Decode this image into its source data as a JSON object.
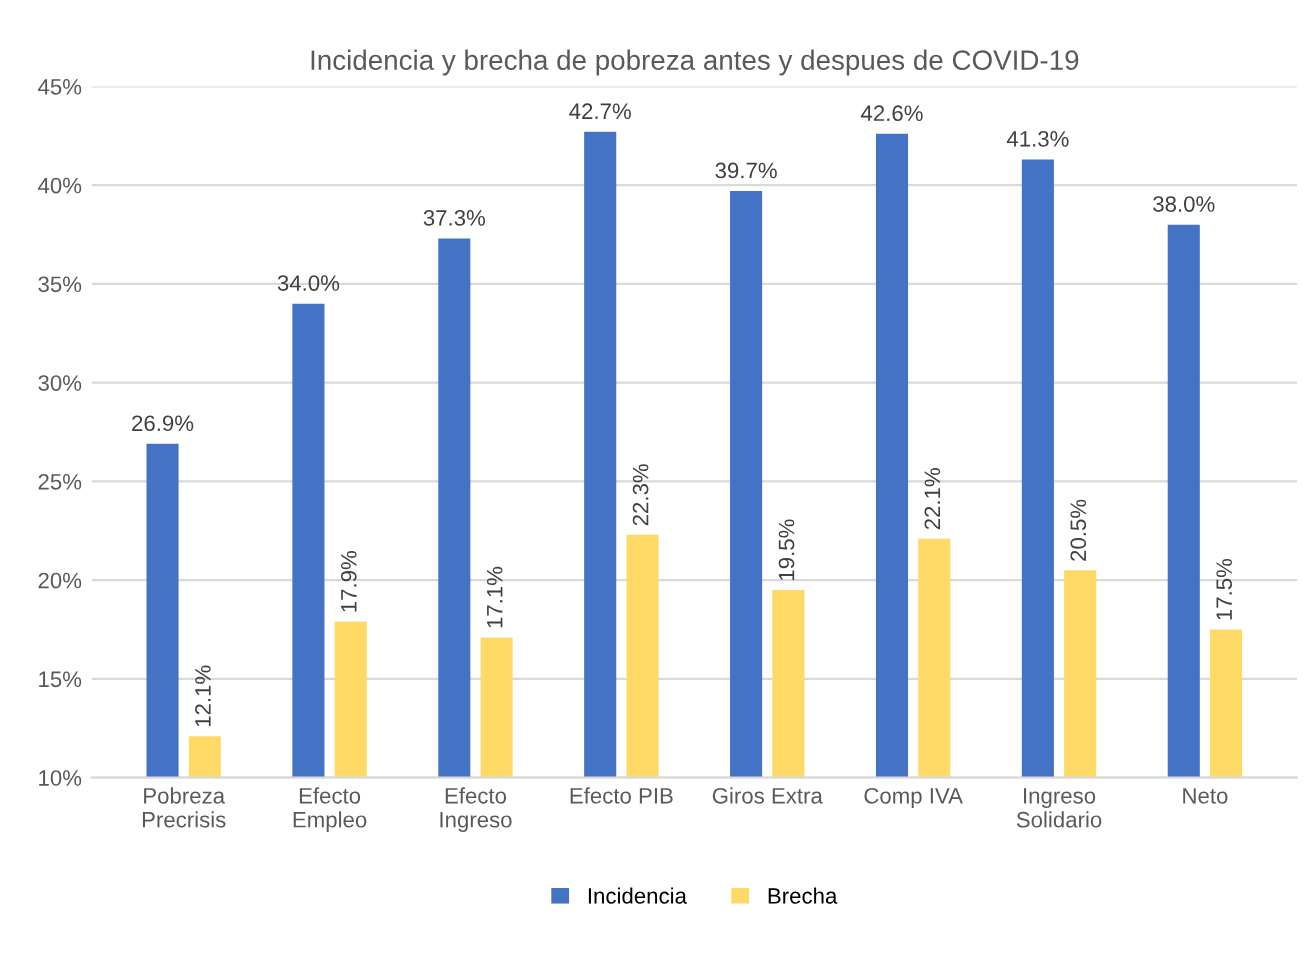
{
  "chart_data": {
    "type": "bar",
    "title": "Incidencia y brecha de pobreza antes y despues de COVID-19",
    "categories": [
      "Pobreza\nPrecrisis",
      "Efecto\nEmpleo",
      "Efecto\nIngreso",
      "Efecto PIB",
      "Giros Extra",
      "Comp IVA",
      "Ingreso\nSolidario",
      "Neto"
    ],
    "series": [
      {
        "name": "Incidencia",
        "color": "#4472c4",
        "values": [
          26.9,
          34.0,
          37.3,
          42.7,
          39.7,
          42.6,
          41.3,
          38.0
        ],
        "value_labels": [
          "26.9%",
          "34.0%",
          "37.3%",
          "42.7%",
          "39.7%",
          "42.6%",
          "41.3%",
          "38.0%"
        ]
      },
      {
        "name": "Brecha",
        "color": "#ffd966",
        "values": [
          12.1,
          17.9,
          17.1,
          22.3,
          19.5,
          22.1,
          20.5,
          17.5
        ],
        "value_labels": [
          "12.1%",
          "17.9%",
          "17.1%",
          "22.3%",
          "19.5%",
          "22.1%",
          "20.5%",
          "17.5%"
        ]
      }
    ],
    "ylim": [
      10,
      45
    ],
    "yticks": [
      {
        "value": 10,
        "label": "10%"
      },
      {
        "value": 15,
        "label": "15%"
      },
      {
        "value": 20,
        "label": "20%"
      },
      {
        "value": 25,
        "label": "25%"
      },
      {
        "value": 30,
        "label": "30%"
      },
      {
        "value": 35,
        "label": "35%"
      },
      {
        "value": 40,
        "label": "40%"
      },
      {
        "value": 45,
        "label": "45%"
      }
    ],
    "grid": "y",
    "legend": "bottom"
  }
}
